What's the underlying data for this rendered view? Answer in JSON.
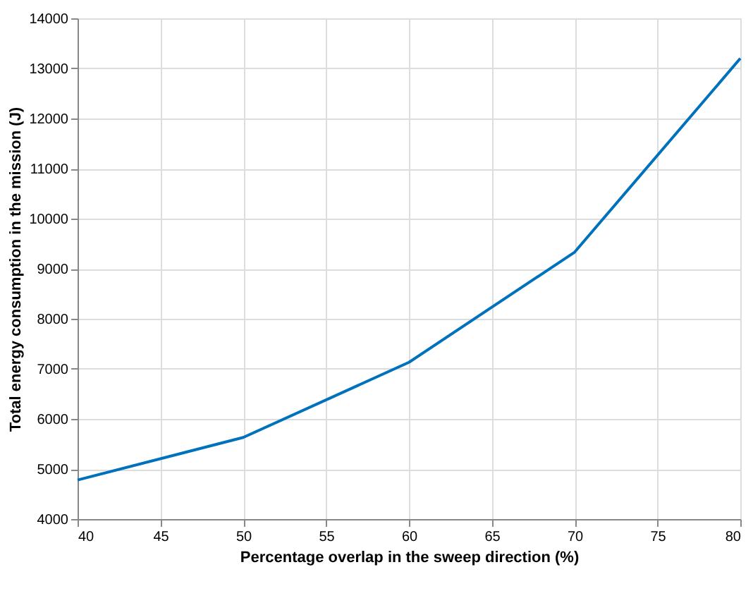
{
  "chart_data": {
    "type": "line",
    "xlabel": "Percentage overlap in the sweep direction (%)",
    "ylabel": "Total energy consumption in the mission (J)",
    "x": [
      40,
      50,
      60,
      70,
      80
    ],
    "series": [
      {
        "color": "#0072bd",
        "values": [
          4780,
          5630,
          7130,
          9330,
          13200
        ]
      }
    ],
    "xlim": [
      40,
      80
    ],
    "xticks": [
      40,
      45,
      50,
      55,
      60,
      65,
      70,
      75,
      80
    ],
    "ylim": [
      4000,
      14000
    ],
    "yticks": [
      4000,
      5000,
      6000,
      7000,
      8000,
      9000,
      10000,
      11000,
      12000,
      13000,
      14000
    ],
    "grid": true,
    "marker": "none",
    "line_style": "solid"
  }
}
